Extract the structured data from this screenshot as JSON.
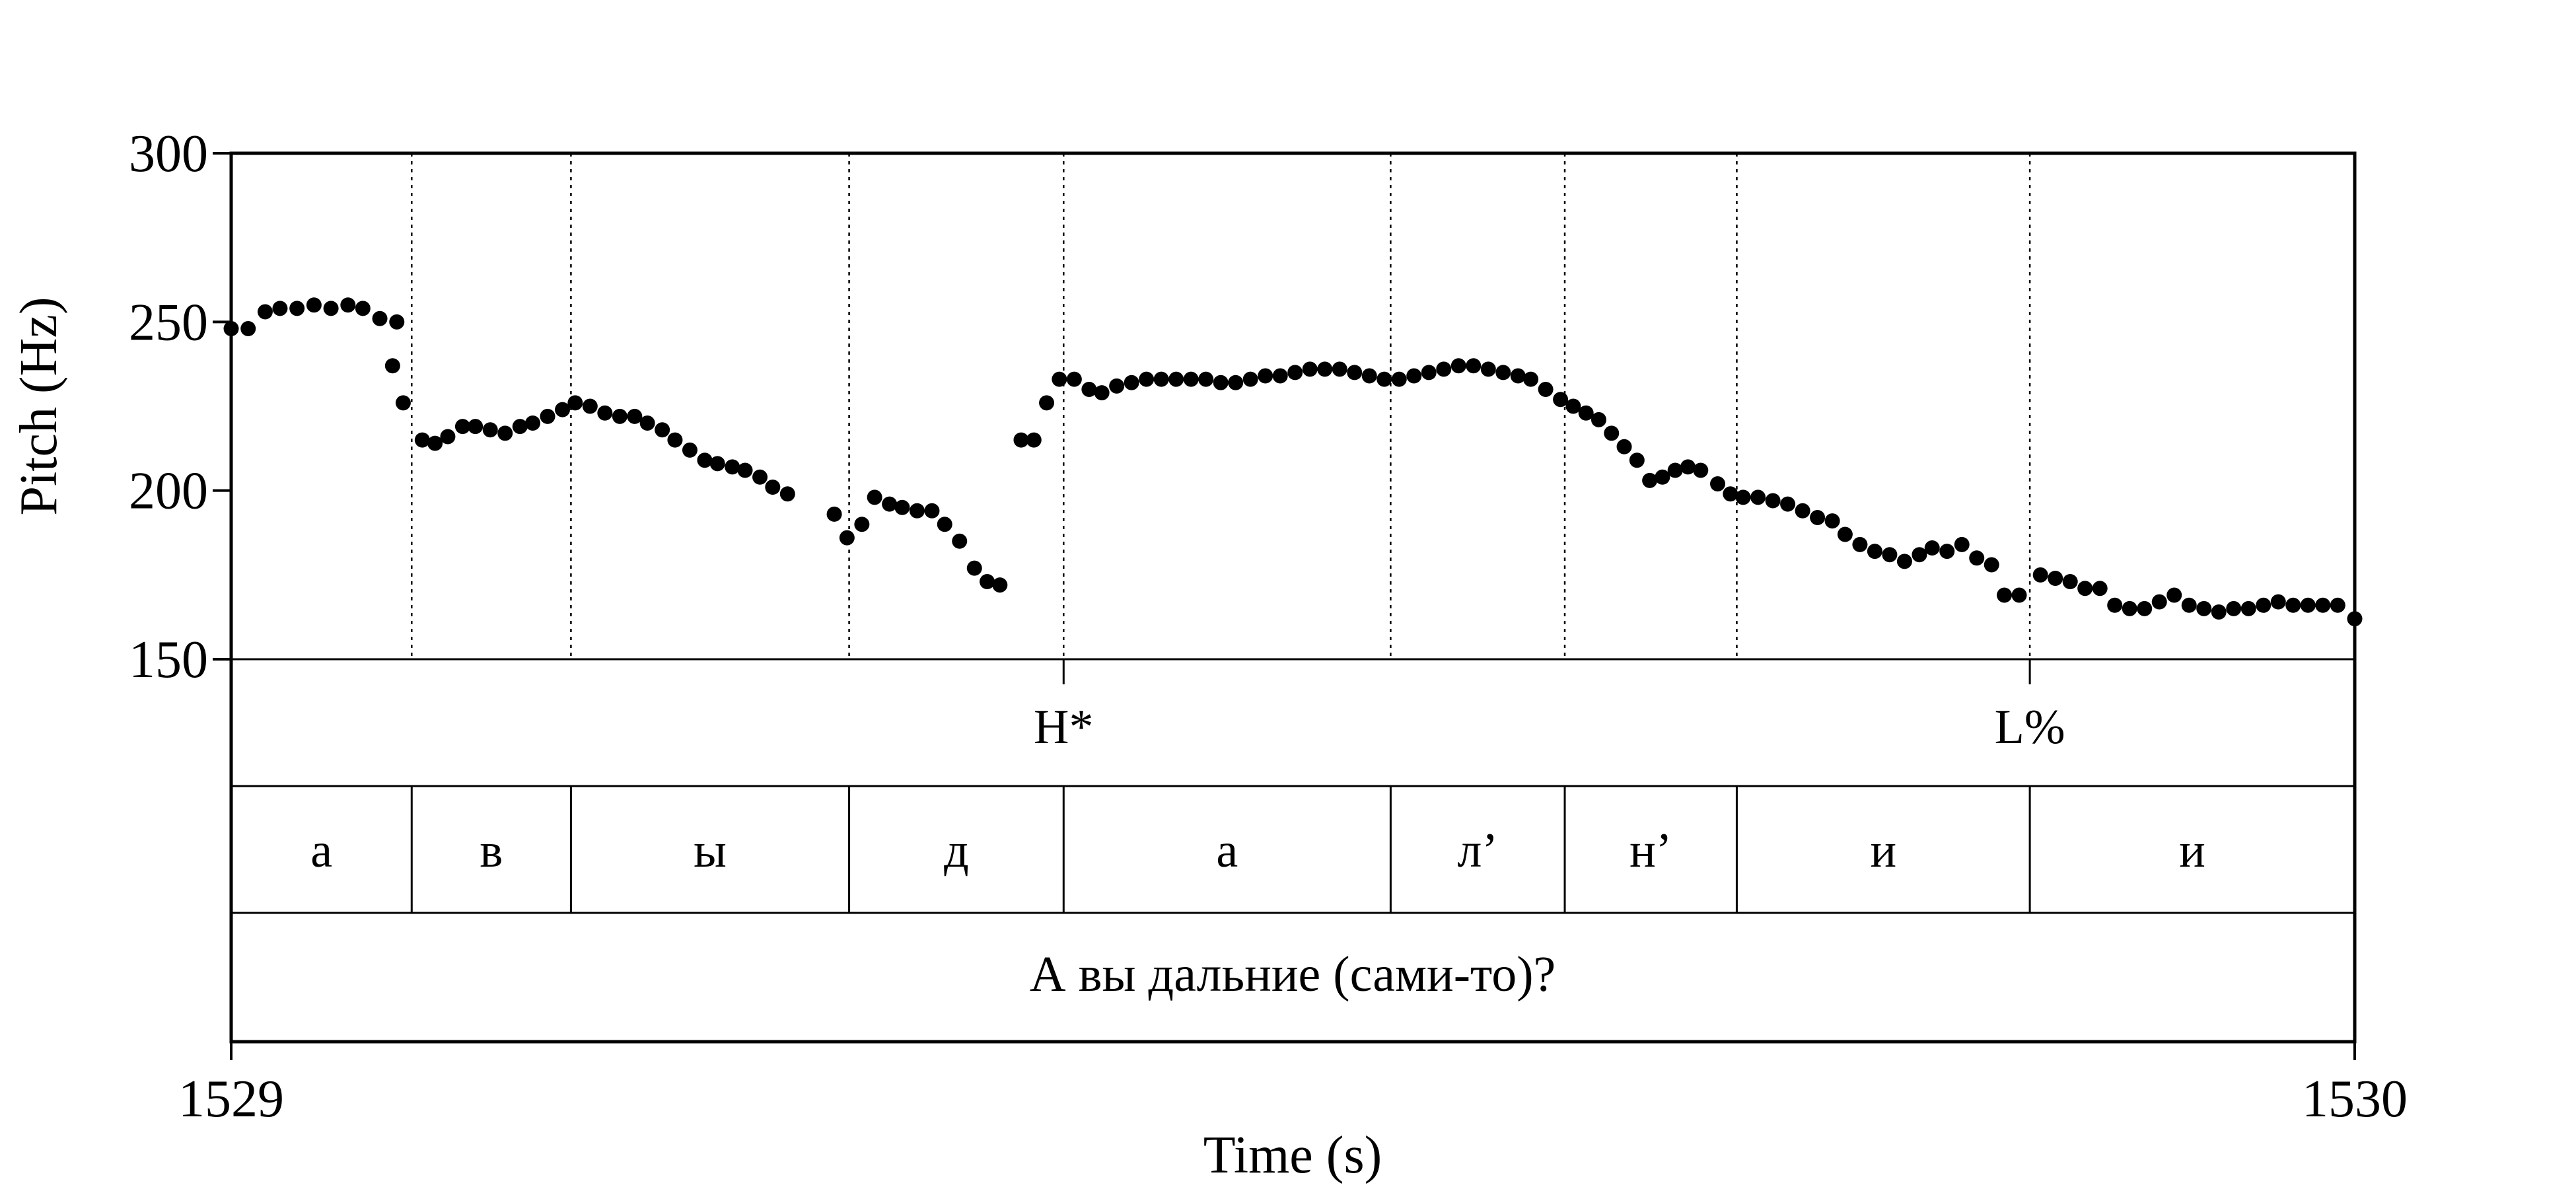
{
  "chart_data": {
    "type": "scatter",
    "title": "",
    "xlabel": "Time (s)",
    "ylabel": "Pitch (Hz)",
    "xlim": [
      1529,
      1530
    ],
    "ylim": [
      150,
      300
    ],
    "x_tick_labels": [
      "1529",
      "1530"
    ],
    "y_tick_labels": [
      "300",
      "250",
      "200",
      "150"
    ],
    "y_ticks": [
      300,
      250,
      200,
      150
    ],
    "grid": false,
    "boundaries": [
      1529.085,
      1529.16,
      1529.291,
      1529.392,
      1529.546,
      1529.628,
      1529.709,
      1529.847
    ],
    "tones": [
      {
        "label": "H*",
        "t": 1529.392
      },
      {
        "label": "L%",
        "t": 1529.847
      }
    ],
    "segments": [
      {
        "label": "а",
        "start": 1529.0,
        "end": 1529.085
      },
      {
        "label": "в",
        "start": 1529.085,
        "end": 1529.16
      },
      {
        "label": "ы",
        "start": 1529.16,
        "end": 1529.291
      },
      {
        "label": "д",
        "start": 1529.291,
        "end": 1529.392
      },
      {
        "label": "а",
        "start": 1529.392,
        "end": 1529.546
      },
      {
        "label": "л’",
        "start": 1529.546,
        "end": 1529.628
      },
      {
        "label": "н’",
        "start": 1529.628,
        "end": 1529.709
      },
      {
        "label": "и",
        "start": 1529.709,
        "end": 1529.847
      },
      {
        "label": "и",
        "start": 1529.847,
        "end": 1530.0
      }
    ],
    "sentence": "А вы дальние (сами-то)?",
    "series": [
      {
        "points": [
          [
            1529.0,
            248
          ],
          [
            1529.008,
            248
          ],
          [
            1529.016,
            253
          ],
          [
            1529.023,
            254
          ],
          [
            1529.031,
            254
          ],
          [
            1529.039,
            255
          ],
          [
            1529.047,
            254
          ],
          [
            1529.055,
            255
          ],
          [
            1529.062,
            254
          ],
          [
            1529.07,
            251
          ],
          [
            1529.078,
            250
          ],
          [
            1529.076,
            237
          ],
          [
            1529.081,
            226
          ],
          [
            1529.09,
            215
          ],
          [
            1529.096,
            214
          ],
          [
            1529.102,
            216
          ],
          [
            1529.109,
            219
          ],
          [
            1529.115,
            219
          ],
          [
            1529.122,
            218
          ],
          [
            1529.129,
            217
          ],
          [
            1529.136,
            219
          ],
          [
            1529.142,
            220
          ],
          [
            1529.149,
            222
          ],
          [
            1529.156,
            224
          ],
          [
            1529.162,
            226
          ],
          [
            1529.169,
            225
          ],
          [
            1529.176,
            223
          ],
          [
            1529.183,
            222
          ],
          [
            1529.19,
            222
          ],
          [
            1529.196,
            220
          ],
          [
            1529.203,
            218
          ],
          [
            1529.209,
            215
          ],
          [
            1529.216,
            212
          ],
          [
            1529.223,
            209
          ],
          [
            1529.229,
            208
          ],
          [
            1529.236,
            207
          ],
          [
            1529.242,
            206
          ],
          [
            1529.249,
            204
          ],
          [
            1529.255,
            201
          ],
          [
            1529.262,
            199
          ],
          [
            1529.284,
            193
          ],
          [
            1529.29,
            186
          ],
          [
            1529.297,
            190
          ],
          [
            1529.303,
            198
          ],
          [
            1529.31,
            196
          ],
          [
            1529.316,
            195
          ],
          [
            1529.323,
            194
          ],
          [
            1529.33,
            194
          ],
          [
            1529.336,
            190
          ],
          [
            1529.343,
            185
          ],
          [
            1529.35,
            177
          ],
          [
            1529.356,
            173
          ],
          [
            1529.362,
            172
          ],
          [
            1529.372,
            215
          ],
          [
            1529.378,
            215
          ],
          [
            1529.384,
            226
          ],
          [
            1529.39,
            233
          ],
          [
            1529.397,
            233
          ],
          [
            1529.404,
            230
          ],
          [
            1529.41,
            229
          ],
          [
            1529.417,
            231
          ],
          [
            1529.424,
            232
          ],
          [
            1529.431,
            233
          ],
          [
            1529.438,
            233
          ],
          [
            1529.445,
            233
          ],
          [
            1529.452,
            233
          ],
          [
            1529.459,
            233
          ],
          [
            1529.466,
            232
          ],
          [
            1529.473,
            232
          ],
          [
            1529.48,
            233
          ],
          [
            1529.487,
            234
          ],
          [
            1529.494,
            234
          ],
          [
            1529.501,
            235
          ],
          [
            1529.508,
            236
          ],
          [
            1529.515,
            236
          ],
          [
            1529.522,
            236
          ],
          [
            1529.529,
            235
          ],
          [
            1529.536,
            234
          ],
          [
            1529.543,
            233
          ],
          [
            1529.55,
            233
          ],
          [
            1529.557,
            234
          ],
          [
            1529.564,
            235
          ],
          [
            1529.571,
            236
          ],
          [
            1529.578,
            237
          ],
          [
            1529.585,
            237
          ],
          [
            1529.592,
            236
          ],
          [
            1529.599,
            235
          ],
          [
            1529.606,
            234
          ],
          [
            1529.612,
            233
          ],
          [
            1529.619,
            230
          ],
          [
            1529.626,
            227
          ],
          [
            1529.632,
            225
          ],
          [
            1529.638,
            223
          ],
          [
            1529.644,
            221
          ],
          [
            1529.65,
            217
          ],
          [
            1529.656,
            213
          ],
          [
            1529.662,
            209
          ],
          [
            1529.668,
            203
          ],
          [
            1529.674,
            204
          ],
          [
            1529.68,
            206
          ],
          [
            1529.686,
            207
          ],
          [
            1529.692,
            206
          ],
          [
            1529.7,
            202
          ],
          [
            1529.706,
            199
          ],
          [
            1529.712,
            198
          ],
          [
            1529.719,
            198
          ],
          [
            1529.726,
            197
          ],
          [
            1529.733,
            196
          ],
          [
            1529.74,
            194
          ],
          [
            1529.747,
            192
          ],
          [
            1529.754,
            191
          ],
          [
            1529.76,
            187
          ],
          [
            1529.767,
            184
          ],
          [
            1529.774,
            182
          ],
          [
            1529.781,
            181
          ],
          [
            1529.788,
            179
          ],
          [
            1529.795,
            181
          ],
          [
            1529.801,
            183
          ],
          [
            1529.808,
            182
          ],
          [
            1529.815,
            184
          ],
          [
            1529.822,
            180
          ],
          [
            1529.829,
            178
          ],
          [
            1529.835,
            169
          ],
          [
            1529.842,
            169
          ],
          [
            1529.852,
            175
          ],
          [
            1529.859,
            174
          ],
          [
            1529.866,
            173
          ],
          [
            1529.873,
            171
          ],
          [
            1529.88,
            171
          ],
          [
            1529.887,
            166
          ],
          [
            1529.894,
            165
          ],
          [
            1529.901,
            165
          ],
          [
            1529.908,
            167
          ],
          [
            1529.915,
            169
          ],
          [
            1529.922,
            166
          ],
          [
            1529.929,
            165
          ],
          [
            1529.936,
            164
          ],
          [
            1529.943,
            165
          ],
          [
            1529.95,
            165
          ],
          [
            1529.957,
            166
          ],
          [
            1529.964,
            167
          ],
          [
            1529.971,
            166
          ],
          [
            1529.978,
            166
          ],
          [
            1529.985,
            166
          ],
          [
            1529.992,
            166
          ],
          [
            1530.0,
            162
          ]
        ]
      }
    ]
  }
}
